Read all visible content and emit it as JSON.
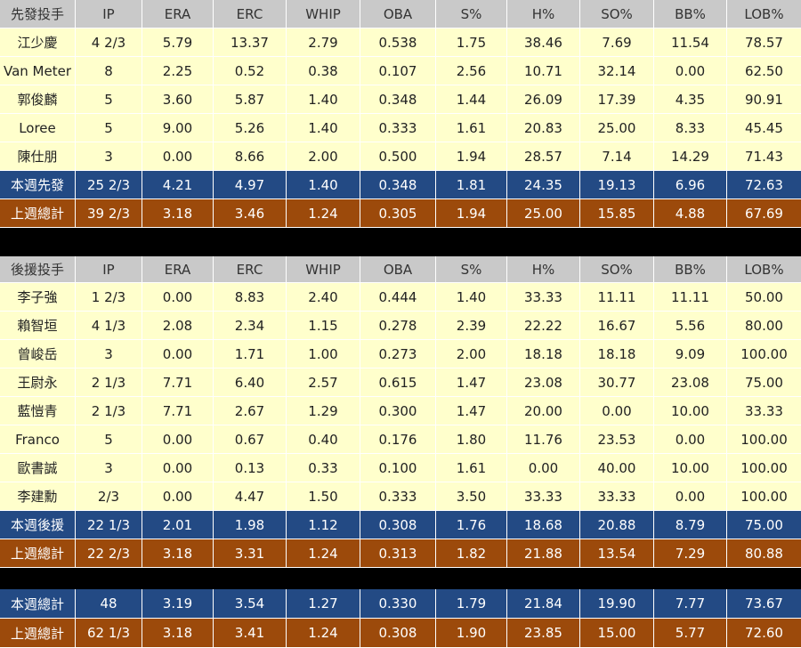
{
  "sections": [
    {
      "header": [
        "先發投手",
        "IP",
        "ERA",
        "ERC",
        "WHIP",
        "OBA",
        "S%",
        "H%",
        "SO%",
        "BB%",
        "LOB%"
      ],
      "rows": [
        [
          "江少慶",
          "4 2/3",
          "5.79",
          "13.37",
          "2.79",
          "0.538",
          "1.75",
          "38.46",
          "7.69",
          "11.54",
          "78.57"
        ],
        [
          "Van Meter",
          "8",
          "2.25",
          "0.52",
          "0.38",
          "0.107",
          "2.56",
          "10.71",
          "32.14",
          "0.00",
          "62.50"
        ],
        [
          "郭俊麟",
          "5",
          "3.60",
          "5.87",
          "1.40",
          "0.348",
          "1.44",
          "26.09",
          "17.39",
          "4.35",
          "90.91"
        ],
        [
          "Loree",
          "5",
          "9.00",
          "5.26",
          "1.40",
          "0.333",
          "1.61",
          "20.83",
          "25.00",
          "8.33",
          "45.45"
        ],
        [
          "陳仕朋",
          "3",
          "0.00",
          "8.66",
          "2.00",
          "0.500",
          "1.94",
          "28.57",
          "7.14",
          "14.29",
          "71.43"
        ]
      ],
      "totals": [
        [
          "本週先發",
          "25 2/3",
          "4.21",
          "4.97",
          "1.40",
          "0.348",
          "1.81",
          "24.35",
          "19.13",
          "6.96",
          "72.63"
        ],
        [
          "上週總計",
          "39 2/3",
          "3.18",
          "3.46",
          "1.24",
          "0.305",
          "1.94",
          "25.00",
          "15.85",
          "4.88",
          "67.69"
        ]
      ]
    },
    {
      "header": [
        "後援投手",
        "IP",
        "ERA",
        "ERC",
        "WHIP",
        "OBA",
        "S%",
        "H%",
        "SO%",
        "BB%",
        "LOB%"
      ],
      "rows": [
        [
          "李子強",
          "1 2/3",
          "0.00",
          "8.83",
          "2.40",
          "0.444",
          "1.40",
          "33.33",
          "11.11",
          "11.11",
          "50.00"
        ],
        [
          "賴智垣",
          "4 1/3",
          "2.08",
          "2.34",
          "1.15",
          "0.278",
          "2.39",
          "22.22",
          "16.67",
          "5.56",
          "80.00"
        ],
        [
          "曾峻岳",
          "3",
          "0.00",
          "1.71",
          "1.00",
          "0.273",
          "2.00",
          "18.18",
          "18.18",
          "9.09",
          "100.00"
        ],
        [
          "王尉永",
          "2 1/3",
          "7.71",
          "6.40",
          "2.57",
          "0.615",
          "1.47",
          "23.08",
          "30.77",
          "23.08",
          "75.00"
        ],
        [
          "藍愷青",
          "2 1/3",
          "7.71",
          "2.67",
          "1.29",
          "0.300",
          "1.47",
          "20.00",
          "0.00",
          "10.00",
          "33.33"
        ],
        [
          "Franco",
          "5",
          "0.00",
          "0.67",
          "0.40",
          "0.176",
          "1.80",
          "11.76",
          "23.53",
          "0.00",
          "100.00"
        ],
        [
          "歐書誠",
          "3",
          "0.00",
          "0.13",
          "0.33",
          "0.100",
          "1.61",
          "0.00",
          "40.00",
          "10.00",
          "100.00"
        ],
        [
          "李建勳",
          "2/3",
          "0.00",
          "4.47",
          "1.50",
          "0.333",
          "3.50",
          "33.33",
          "33.33",
          "0.00",
          "100.00"
        ]
      ],
      "totals": [
        [
          "本週後援",
          "22 1/3",
          "2.01",
          "1.98",
          "1.12",
          "0.308",
          "1.76",
          "18.68",
          "20.88",
          "8.79",
          "75.00"
        ],
        [
          "上週總計",
          "22 2/3",
          "3.18",
          "3.31",
          "1.24",
          "0.313",
          "1.82",
          "21.88",
          "13.54",
          "7.29",
          "80.88"
        ]
      ]
    }
  ],
  "grand_totals": [
    [
      "本週總計",
      "48",
      "3.19",
      "3.54",
      "1.27",
      "0.330",
      "1.79",
      "21.84",
      "19.90",
      "7.77",
      "73.67"
    ],
    [
      "上週總計",
      "62 1/3",
      "3.18",
      "3.41",
      "1.24",
      "0.308",
      "1.90",
      "23.85",
      "15.00",
      "5.77",
      "72.60"
    ]
  ]
}
